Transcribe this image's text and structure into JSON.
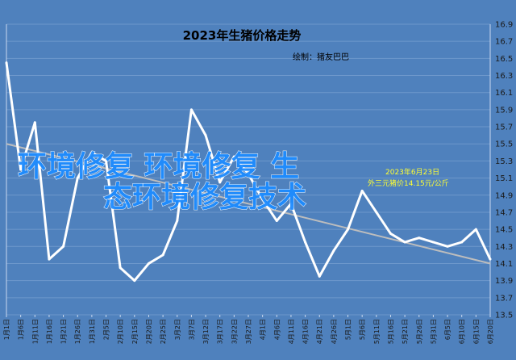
{
  "chart_data": {
    "type": "line",
    "title": "2023年生猪价格走势",
    "subtitle": "绘制：猪友巴巴",
    "ylim": [
      13.5,
      16.9
    ],
    "yticks": [
      13.5,
      13.7,
      13.9,
      14.1,
      14.3,
      14.5,
      14.7,
      14.9,
      15.1,
      15.3,
      15.5,
      15.7,
      15.9,
      16.1,
      16.3,
      16.5,
      16.7,
      16.9
    ],
    "grid": true,
    "legend": "none",
    "x": [
      "1月1日",
      "1月6日",
      "1月11日",
      "1月16日",
      "1月21日",
      "1月26日",
      "1月31日",
      "2月5日",
      "2月10日",
      "2月15日",
      "2月20日",
      "2月25日",
      "3月2日",
      "3月7日",
      "3月12日",
      "3月17日",
      "3月22日",
      "3月27日",
      "4月1日",
      "4月6日",
      "4月11日",
      "4月16日",
      "4月21日",
      "4月26日",
      "5月1日",
      "5月6日",
      "5月11日",
      "5月16日",
      "5月21日",
      "5月26日",
      "5月31日",
      "6月5日",
      "6月10日",
      "6月15日",
      "6月20日"
    ],
    "series": [
      {
        "color": "#ffffff",
        "values": [
          16.45,
          15.2,
          15.75,
          14.15,
          14.3,
          15.1,
          15.4,
          15.3,
          14.05,
          13.9,
          14.1,
          14.2,
          14.6,
          15.9,
          15.6,
          15.05,
          15.35,
          15.15,
          14.85,
          14.6,
          14.8,
          14.35,
          13.95,
          14.25,
          14.5,
          14.95,
          14.7,
          14.45,
          14.35,
          14.4,
          14.35,
          14.3,
          14.35,
          14.5,
          14.15
        ]
      }
    ],
    "trendline": {
      "color": "#bdbdbd",
      "values": [
        15.5,
        14.1
      ]
    },
    "annotations": [
      {
        "text": "2023年6月23日",
        "x": "6月23日"
      },
      {
        "text": "外三元猪价14.15元/公斤",
        "x": "6月23日"
      }
    ],
    "watermark": [
      "环境修复 环境修复 生",
      "态环境修复技术"
    ]
  }
}
